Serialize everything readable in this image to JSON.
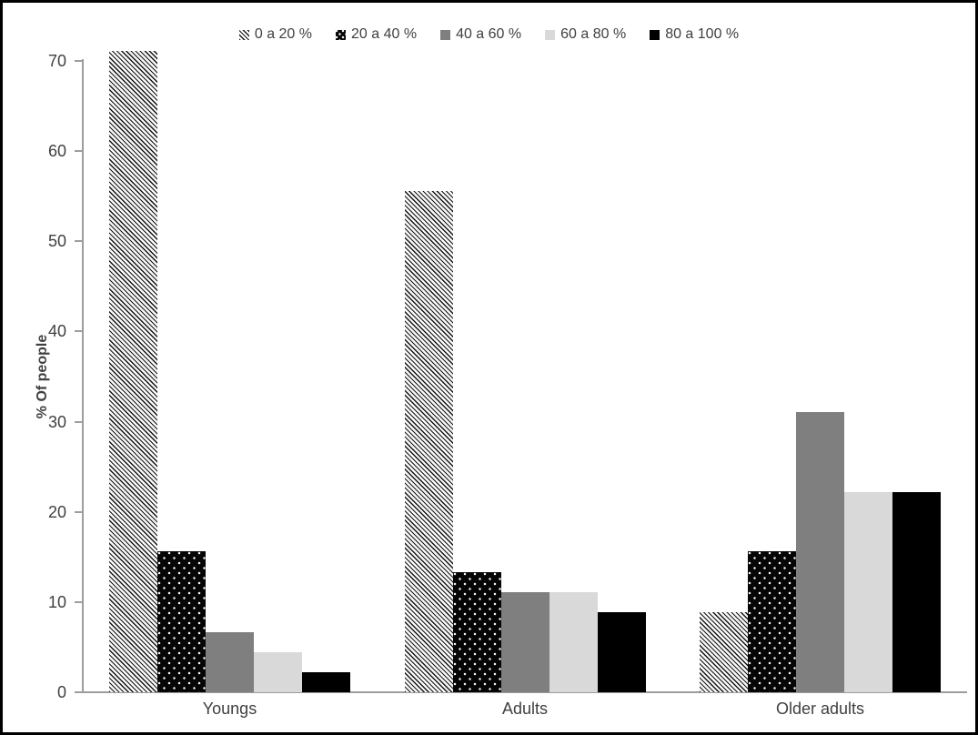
{
  "chart_data": {
    "type": "bar",
    "title": "",
    "xlabel": "",
    "ylabel": "% Of people",
    "ylim": [
      0,
      70
    ],
    "yticks": [
      0,
      10,
      20,
      30,
      40,
      50,
      60,
      70
    ],
    "grid": false,
    "legend_position": "top",
    "categories": [
      "Youngs",
      "Adults",
      "Older adults"
    ],
    "series": [
      {
        "name": "0 a 20 %",
        "pattern": "diagonal-hatch",
        "color": "#ffffff",
        "values": [
          71.1,
          55.6,
          8.9
        ]
      },
      {
        "name": "20 a 40 %",
        "pattern": "dots-on-black",
        "color": "#000000",
        "values": [
          15.6,
          13.3,
          15.6
        ]
      },
      {
        "name": "40 a 60 %",
        "pattern": "solid",
        "color": "#7f7f7f",
        "values": [
          6.7,
          11.1,
          31.1
        ]
      },
      {
        "name": "60 a 80 %",
        "pattern": "solid",
        "color": "#d9d9d9",
        "values": [
          4.4,
          11.1,
          22.2
        ]
      },
      {
        "name": "80 a 100 %",
        "pattern": "solid",
        "color": "#000000",
        "values": [
          2.2,
          8.9,
          22.2
        ]
      }
    ],
    "style": {
      "axis_color": "#9d9d9d",
      "text_color": "#404040"
    }
  }
}
